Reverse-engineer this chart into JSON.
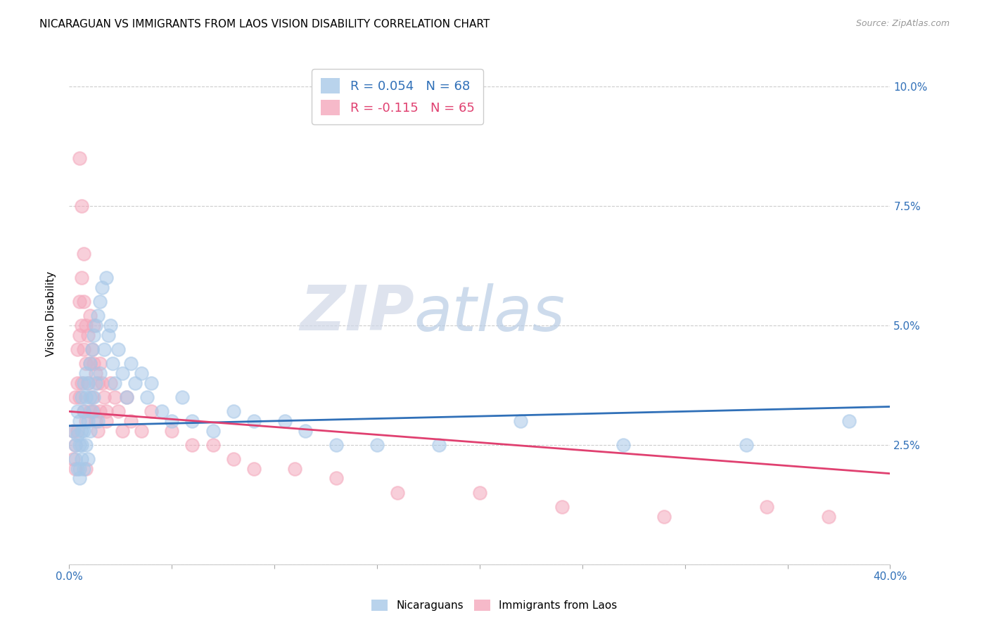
{
  "title": "NICARAGUAN VS IMMIGRANTS FROM LAOS VISION DISABILITY CORRELATION CHART",
  "source": "Source: ZipAtlas.com",
  "ylabel": "Vision Disability",
  "ylim": [
    0.0,
    0.105
  ],
  "xlim": [
    0.0,
    0.4
  ],
  "ytick_values": [
    0.0,
    0.025,
    0.05,
    0.075,
    0.1
  ],
  "nicaraguan_color": "#a8c8e8",
  "laos_color": "#f4a8bc",
  "trend_nicaraguan_color": "#3070b8",
  "trend_laos_color": "#e04070",
  "background_color": "#ffffff",
  "watermark_zip": "ZIP",
  "watermark_atlas": "atlas",
  "nicaraguan_x": [
    0.002,
    0.003,
    0.003,
    0.004,
    0.004,
    0.004,
    0.005,
    0.005,
    0.005,
    0.005,
    0.006,
    0.006,
    0.006,
    0.006,
    0.007,
    0.007,
    0.007,
    0.007,
    0.008,
    0.008,
    0.008,
    0.009,
    0.009,
    0.009,
    0.01,
    0.01,
    0.01,
    0.011,
    0.011,
    0.012,
    0.012,
    0.013,
    0.013,
    0.014,
    0.014,
    0.015,
    0.015,
    0.016,
    0.017,
    0.018,
    0.019,
    0.02,
    0.021,
    0.022,
    0.024,
    0.026,
    0.028,
    0.03,
    0.032,
    0.035,
    0.038,
    0.04,
    0.045,
    0.05,
    0.055,
    0.06,
    0.07,
    0.08,
    0.09,
    0.105,
    0.115,
    0.13,
    0.15,
    0.18,
    0.22,
    0.27,
    0.33,
    0.38
  ],
  "nicaraguan_y": [
    0.028,
    0.025,
    0.022,
    0.02,
    0.032,
    0.027,
    0.03,
    0.025,
    0.02,
    0.018,
    0.035,
    0.028,
    0.025,
    0.022,
    0.038,
    0.032,
    0.028,
    0.02,
    0.04,
    0.035,
    0.025,
    0.038,
    0.03,
    0.022,
    0.042,
    0.035,
    0.028,
    0.045,
    0.032,
    0.048,
    0.035,
    0.05,
    0.038,
    0.052,
    0.03,
    0.055,
    0.04,
    0.058,
    0.045,
    0.06,
    0.048,
    0.05,
    0.042,
    0.038,
    0.045,
    0.04,
    0.035,
    0.042,
    0.038,
    0.04,
    0.035,
    0.038,
    0.032,
    0.03,
    0.035,
    0.03,
    0.028,
    0.032,
    0.03,
    0.03,
    0.028,
    0.025,
    0.025,
    0.025,
    0.03,
    0.025,
    0.025,
    0.03
  ],
  "laos_x": [
    0.002,
    0.002,
    0.003,
    0.003,
    0.003,
    0.004,
    0.004,
    0.004,
    0.005,
    0.005,
    0.005,
    0.006,
    0.006,
    0.006,
    0.007,
    0.007,
    0.007,
    0.008,
    0.008,
    0.008,
    0.009,
    0.009,
    0.01,
    0.01,
    0.01,
    0.011,
    0.011,
    0.012,
    0.012,
    0.013,
    0.013,
    0.014,
    0.014,
    0.015,
    0.015,
    0.016,
    0.017,
    0.018,
    0.02,
    0.022,
    0.024,
    0.026,
    0.028,
    0.03,
    0.035,
    0.04,
    0.05,
    0.06,
    0.07,
    0.08,
    0.09,
    0.11,
    0.13,
    0.16,
    0.2,
    0.24,
    0.29,
    0.34,
    0.37,
    0.005,
    0.006,
    0.007,
    0.008,
    0.012,
    0.018
  ],
  "laos_y": [
    0.028,
    0.022,
    0.035,
    0.025,
    0.02,
    0.045,
    0.038,
    0.028,
    0.055,
    0.048,
    0.035,
    0.06,
    0.05,
    0.038,
    0.055,
    0.045,
    0.032,
    0.05,
    0.042,
    0.03,
    0.048,
    0.038,
    0.052,
    0.042,
    0.032,
    0.045,
    0.035,
    0.042,
    0.032,
    0.04,
    0.03,
    0.038,
    0.028,
    0.042,
    0.032,
    0.038,
    0.035,
    0.032,
    0.038,
    0.035,
    0.032,
    0.028,
    0.035,
    0.03,
    0.028,
    0.032,
    0.028,
    0.025,
    0.025,
    0.022,
    0.02,
    0.02,
    0.018,
    0.015,
    0.015,
    0.012,
    0.01,
    0.012,
    0.01,
    0.085,
    0.075,
    0.065,
    0.02,
    0.05,
    0.03
  ],
  "trend_nic_x0": 0.0,
  "trend_nic_y0": 0.029,
  "trend_nic_x1": 0.4,
  "trend_nic_y1": 0.033,
  "trend_laos_x0": 0.0,
  "trend_laos_y0": 0.032,
  "trend_laos_x1": 0.4,
  "trend_laos_y1": 0.019
}
